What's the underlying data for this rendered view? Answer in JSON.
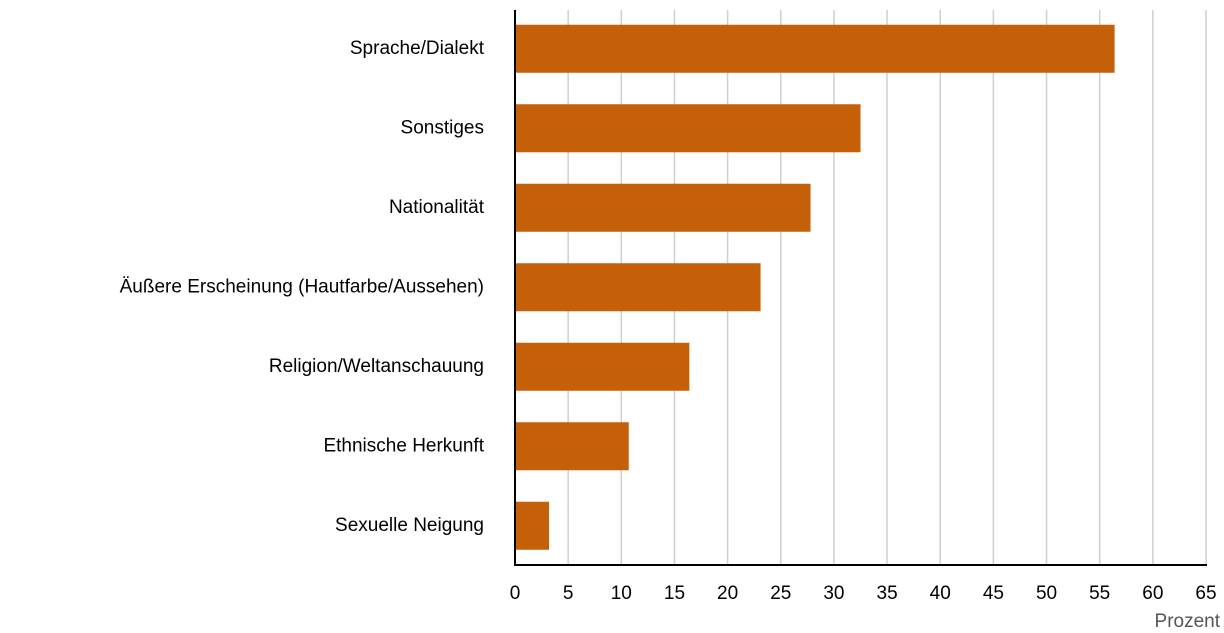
{
  "chart_data": {
    "type": "barh",
    "x_label": "Prozent",
    "categories": [
      "Sprache/Dialekt",
      "Sonstiges",
      "Nationalität",
      "Äußere Erscheinung (Hautfarbe/Aussehen)",
      "Religion/Weltanschauung",
      "Ethnische Herkunft",
      "Sexuelle Neigung"
    ],
    "values": [
      56.4,
      32.5,
      27.8,
      23.1,
      16.4,
      10.7,
      3.2
    ],
    "color": "#c55f08",
    "xlim": [
      0,
      65
    ],
    "xticks": [
      0,
      5,
      10,
      15,
      20,
      25,
      30,
      35,
      40,
      45,
      50,
      55,
      60,
      65
    ],
    "grid": true
  }
}
